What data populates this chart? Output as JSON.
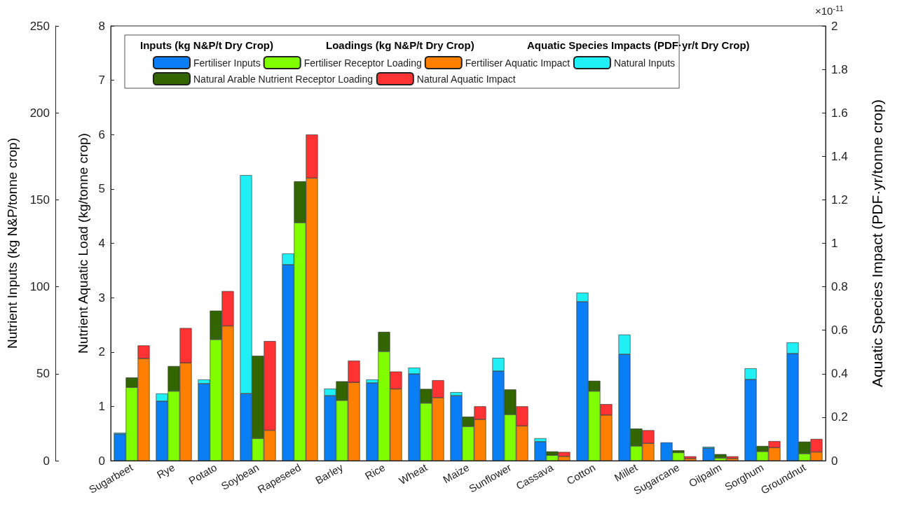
{
  "chart_data": {
    "type": "bar",
    "stacked": true,
    "grid": false,
    "legend": "top",
    "categories": [
      "Sugarbeet",
      "Rye",
      "Potato",
      "Soybean",
      "Rapeseed",
      "Barley",
      "Rice",
      "Wheat",
      "Maize",
      "Sunflower",
      "Cassava",
      "Cotton",
      "Millet",
      "Sugarcane",
      "Oilpalm",
      "Sorghum",
      "Groundnut"
    ],
    "ylabel": "Nutrient Inputs (kg N&P/tonne crop)",
    "y3label": "Nutrient Aquatic Load (kg/tonne crop)",
    "y2label": "Aquatic Species Impact (PDF·yr/tonne crop)",
    "ylim": [
      0,
      250
    ],
    "yticks": [
      0,
      50,
      100,
      150,
      200,
      250
    ],
    "y3lim": [
      0,
      8
    ],
    "y3ticks": [
      0,
      1,
      2,
      3,
      4,
      5,
      6,
      7,
      8
    ],
    "y2lim": [
      0,
      2
    ],
    "y2ticks": [
      0,
      0.2,
      0.4,
      0.6,
      0.8,
      1,
      1.2,
      1.4,
      1.6,
      1.8,
      2
    ],
    "annotations": [
      "Inputs (kg N&P/t Dry Crop)",
      "Loadings (kg N&P/t Dry Crop)",
      "Aquatic Species Impacts (PDF·yr/t Dry Crop)",
      "×10$^{-11}$"
    ],
    "series": [
      {
        "name": "Fertiliser Inputs",
        "color": "#0a7ff5",
        "axis": "y",
        "values": [
          15.3,
          34.2,
          44.3,
          38.6,
          112.7,
          37.4,
          44.7,
          49.9,
          37.4,
          51.5,
          10.9,
          91.4,
          61.2,
          10.5,
          7.2,
          46.7,
          61.6
        ]
      },
      {
        "name": "Fertiliser Receptor Loading",
        "color": "#80ff00",
        "axis": "y3",
        "values": [
          1.35,
          1.28,
          2.23,
          0.41,
          4.38,
          1.11,
          2.01,
          1.06,
          0.63,
          0.85,
          0.1,
          1.28,
          0.27,
          0.15,
          0.05,
          0.17,
          0.13
        ]
      },
      {
        "name": "Fertiliser Aquatic Impact",
        "color": "#ff8000",
        "axis": "y2",
        "values": [
          0.47,
          0.45,
          0.62,
          0.14,
          1.3,
          0.36,
          0.33,
          0.29,
          0.19,
          0.16,
          0.02,
          0.21,
          0.08,
          0.01,
          0.01,
          0.06,
          0.04
        ]
      },
      {
        "name": "Natural Inputs",
        "color": "#1ff0f5",
        "axis": "y",
        "values": [
          0.8,
          4.4,
          2.4,
          125.6,
          6.4,
          4,
          2,
          3.6,
          2,
          7.6,
          2,
          5.2,
          11.3,
          null,
          0.8,
          6.4,
          6.4
        ]
      },
      {
        "name": "Natural Arable Nutrient Receptor Loading",
        "color": "#336600",
        "axis": "y3",
        "values": [
          0.18,
          0.46,
          0.53,
          1.52,
          0.76,
          0.35,
          0.36,
          0.26,
          0.18,
          0.46,
          0.07,
          0.19,
          0.32,
          0.04,
          0.07,
          0.1,
          0.22
        ]
      },
      {
        "name": "Natural Aquatic Impact",
        "color": "#ff3333",
        "axis": "y2",
        "values": [
          0.06,
          0.16,
          0.16,
          0.41,
          0.2,
          0.1,
          0.08,
          0.08,
          0.06,
          0.09,
          0.02,
          0.05,
          0.06,
          0.01,
          0.01,
          0.03,
          0.06
        ]
      }
    ]
  }
}
